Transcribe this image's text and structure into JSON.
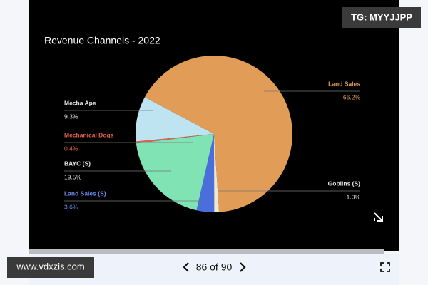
{
  "chart_data": {
    "type": "pie",
    "title": "Revenue Channels - 2022",
    "categories": [
      "Land Sales",
      "Goblins (S)",
      "Land Sales (S)",
      "BAYC (S)",
      "Mechanical Dogs",
      "Mecha Ape"
    ],
    "values": [
      66.2,
      1.0,
      3.6,
      19.5,
      0.4,
      9.3
    ],
    "value_labels": [
      "66.2%",
      "1.0%",
      "3.6%",
      "19.5%",
      "0.4%",
      "9.3%"
    ],
    "colors": [
      "#e19d57",
      "#efe6d4",
      "#4a6edb",
      "#7fe3b4",
      "#e2604d",
      "#bfe4f1"
    ],
    "label_colors": [
      "#e19d57",
      "#e8e8e8",
      "#6f8cf0",
      "#e8e8e8",
      "#e2604d",
      "#e8e8e8"
    ]
  },
  "ui": {
    "watermark_top": "TG: MYYJJPP",
    "watermark_bottom": "www.vdxzis.com",
    "pager": "86 of 90"
  }
}
